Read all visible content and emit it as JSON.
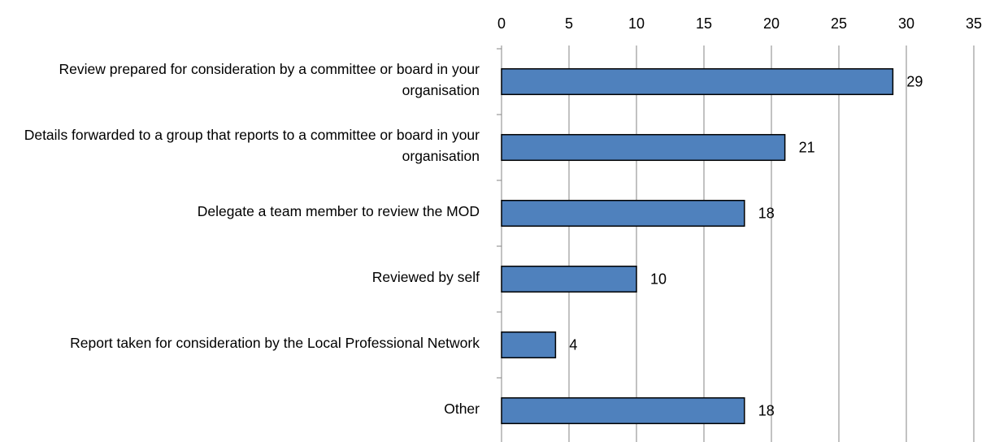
{
  "chart_data": {
    "type": "bar",
    "orientation": "horizontal",
    "categories": [
      "Review prepared for consideration by a committee or board in your organisation",
      "Details forwarded to a group that reports to a committee or board in your organisation",
      "Delegate a team member to review the MOD",
      "Reviewed by self",
      "Report taken for consideration by the Local Professional Network",
      "Other"
    ],
    "values": [
      29,
      21,
      18,
      10,
      4,
      18
    ],
    "color": "#4f81bd",
    "xlim": [
      0,
      35
    ],
    "xticks": [
      0,
      5,
      10,
      15,
      20,
      25,
      30,
      35
    ],
    "grid": true
  }
}
